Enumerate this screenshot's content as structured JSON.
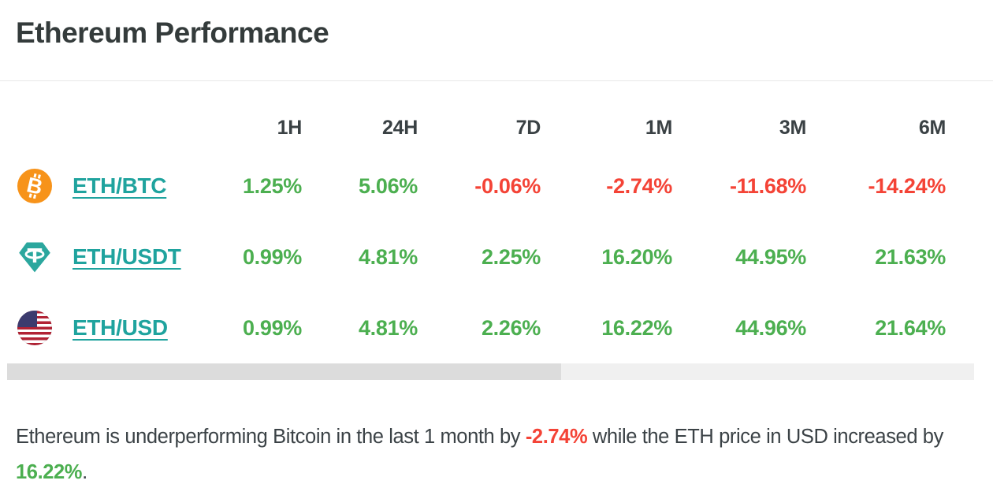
{
  "header": {
    "title": "Ethereum Performance"
  },
  "table": {
    "columns": [
      "1H",
      "24H",
      "7D",
      "1M",
      "3M",
      "6M"
    ],
    "rows": [
      {
        "pair": "ETH/BTC",
        "icon": "bitcoin-icon",
        "values": [
          {
            "text": "1.25%",
            "trend": "up"
          },
          {
            "text": "5.06%",
            "trend": "up"
          },
          {
            "text": "-0.06%",
            "trend": "down"
          },
          {
            "text": "-2.74%",
            "trend": "down"
          },
          {
            "text": "-11.68%",
            "trend": "down"
          },
          {
            "text": "-14.24%",
            "trend": "down"
          }
        ]
      },
      {
        "pair": "ETH/USDT",
        "icon": "tether-icon",
        "values": [
          {
            "text": "0.99%",
            "trend": "up"
          },
          {
            "text": "4.81%",
            "trend": "up"
          },
          {
            "text": "2.25%",
            "trend": "up"
          },
          {
            "text": "16.20%",
            "trend": "up"
          },
          {
            "text": "44.95%",
            "trend": "up"
          },
          {
            "text": "21.63%",
            "trend": "up"
          }
        ]
      },
      {
        "pair": "ETH/USD",
        "icon": "usd-flag-icon",
        "values": [
          {
            "text": "0.99%",
            "trend": "up"
          },
          {
            "text": "4.81%",
            "trend": "up"
          },
          {
            "text": "2.26%",
            "trend": "up"
          },
          {
            "text": "16.22%",
            "trend": "up"
          },
          {
            "text": "44.96%",
            "trend": "up"
          },
          {
            "text": "21.64%",
            "trend": "up"
          }
        ]
      }
    ]
  },
  "summary": {
    "parts": [
      {
        "text": "Ethereum is underperforming Bitcoin in the last 1 month by ",
        "trend": "none"
      },
      {
        "text": "-2.74%",
        "trend": "down"
      },
      {
        "text": " while the ETH price in USD increased by ",
        "trend": "none"
      },
      {
        "text": "16.22%",
        "trend": "up"
      },
      {
        "text": ".",
        "trend": "none"
      }
    ]
  },
  "colors": {
    "positive": "#4caf50",
    "negative": "#f44336",
    "link_teal": "#1fa39e",
    "bitcoin_orange": "#f7931a",
    "tether_teal": "#2ba79e",
    "title_text": "#343b3b",
    "scrollbar_thumb": "#dcdcdc",
    "scrollbar_track": "#f0f0f0"
  }
}
